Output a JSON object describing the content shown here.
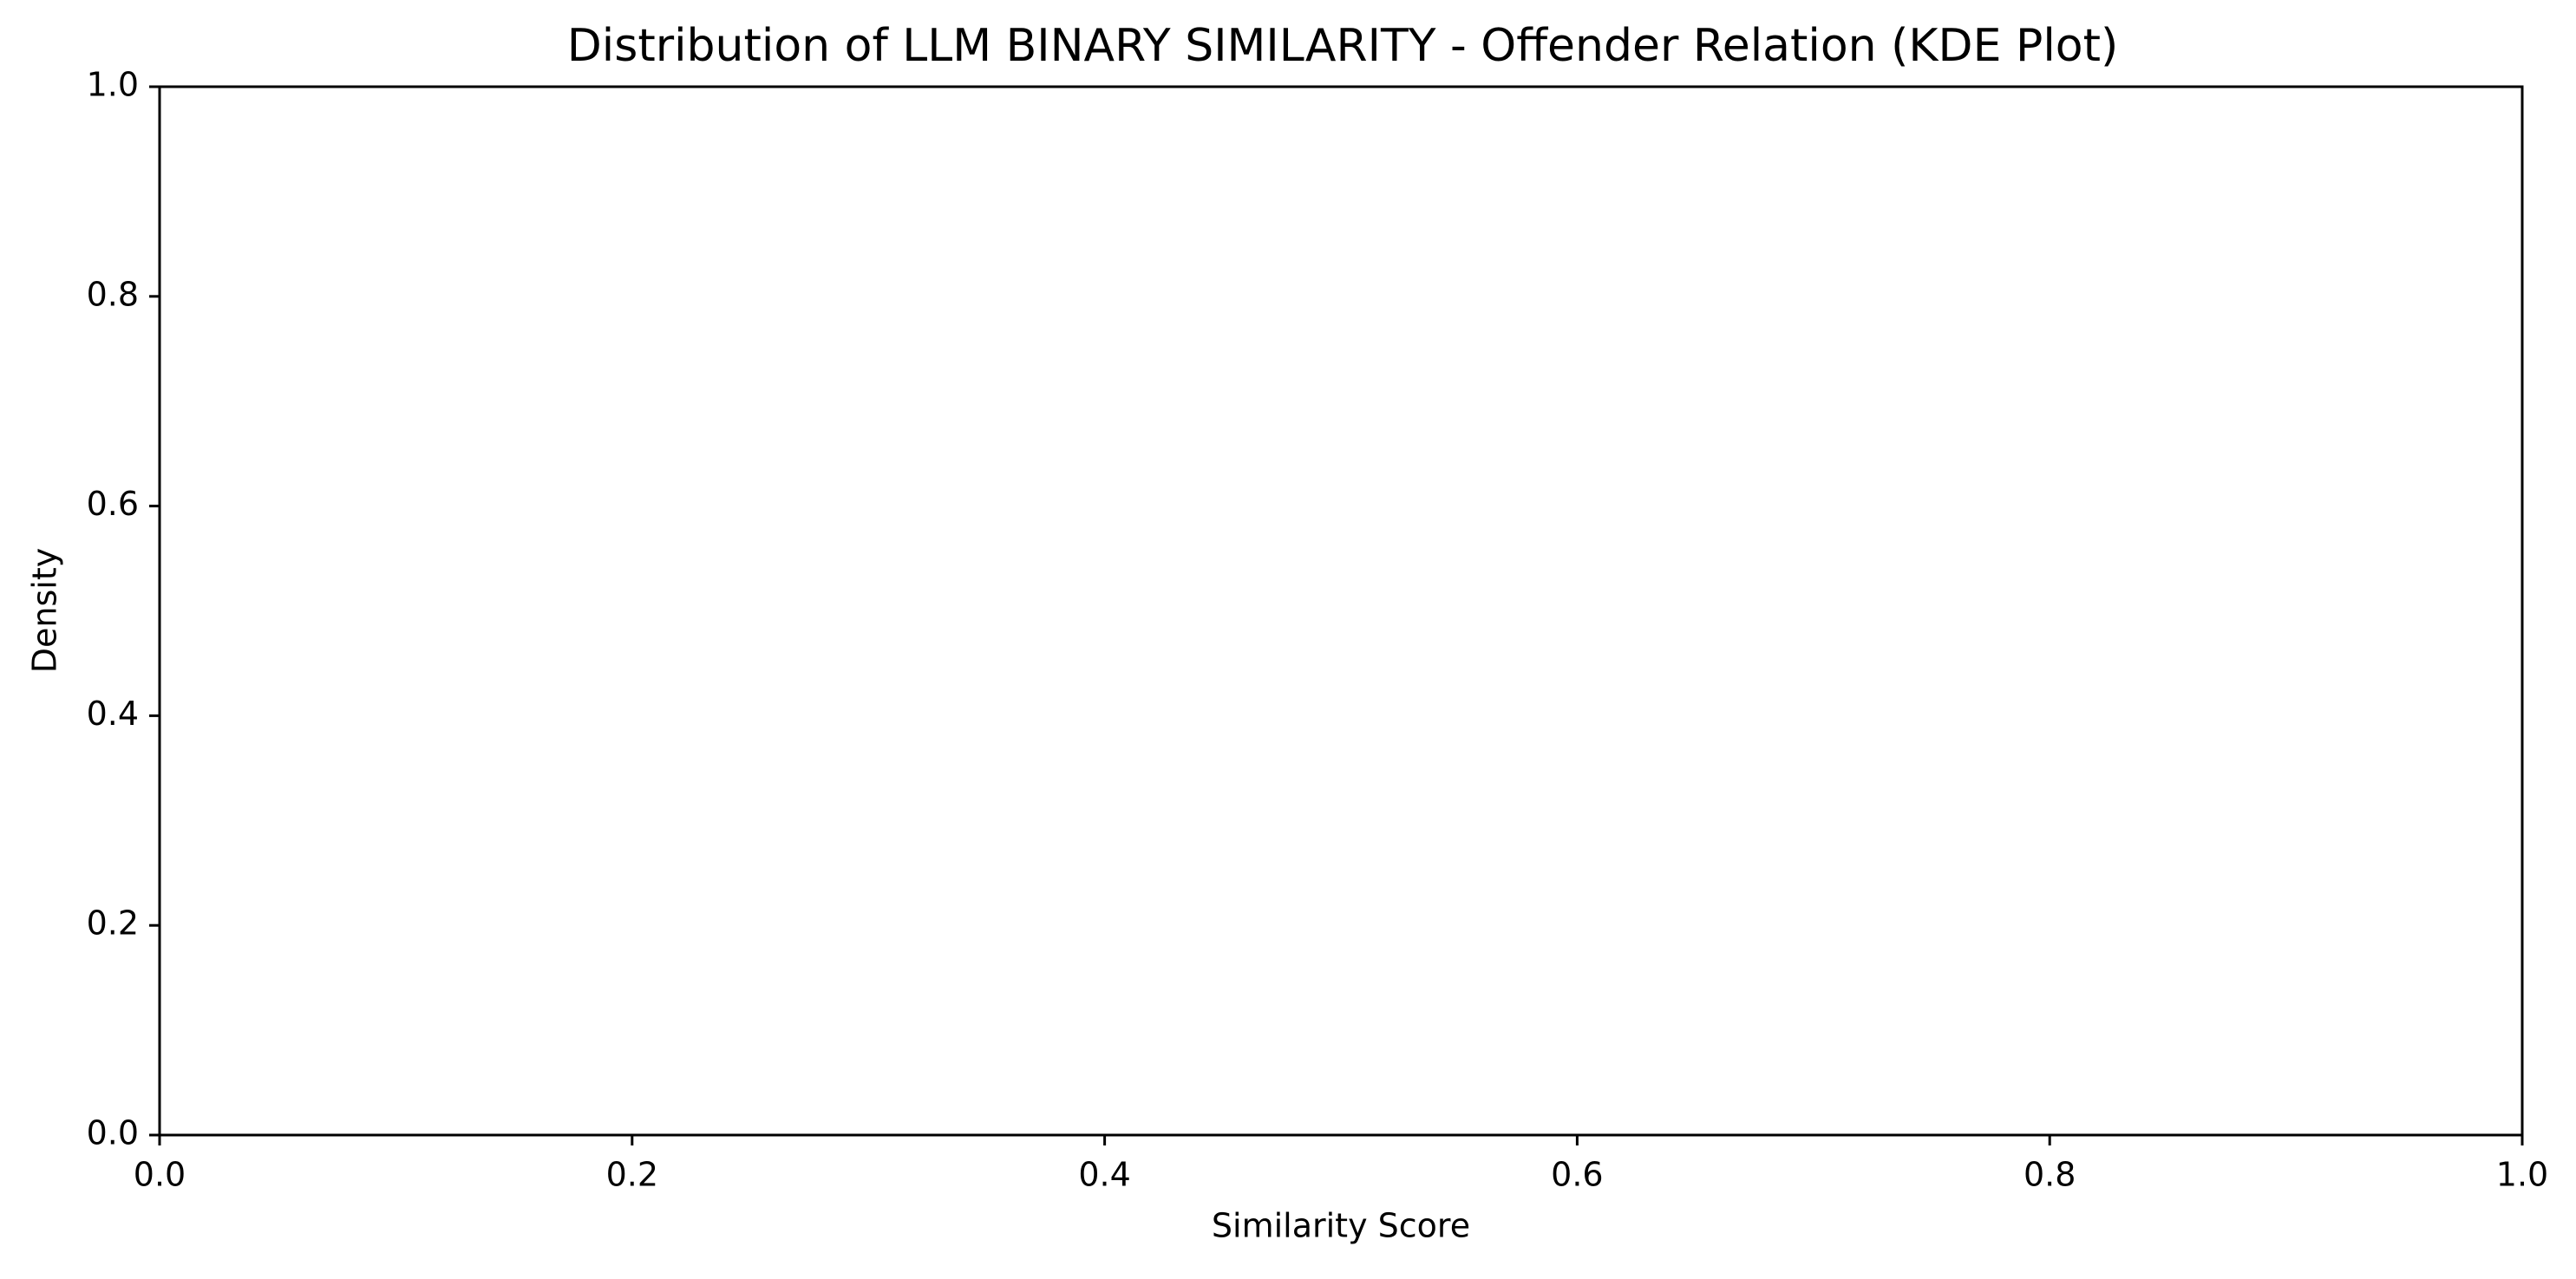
{
  "chart_data": {
    "type": "line",
    "title": "Distribution of LLM BINARY SIMILARITY - Offender Relation (KDE Plot)",
    "xlabel": "Similarity Score",
    "ylabel": "Density",
    "xlim": [
      0.0,
      1.0
    ],
    "ylim": [
      0.0,
      1.0
    ],
    "xticks": [
      "0.0",
      "0.2",
      "0.4",
      "0.6",
      "0.8",
      "1.0"
    ],
    "yticks": [
      "0.0",
      "0.2",
      "0.4",
      "0.6",
      "0.8",
      "1.0"
    ],
    "grid": false,
    "series": []
  }
}
